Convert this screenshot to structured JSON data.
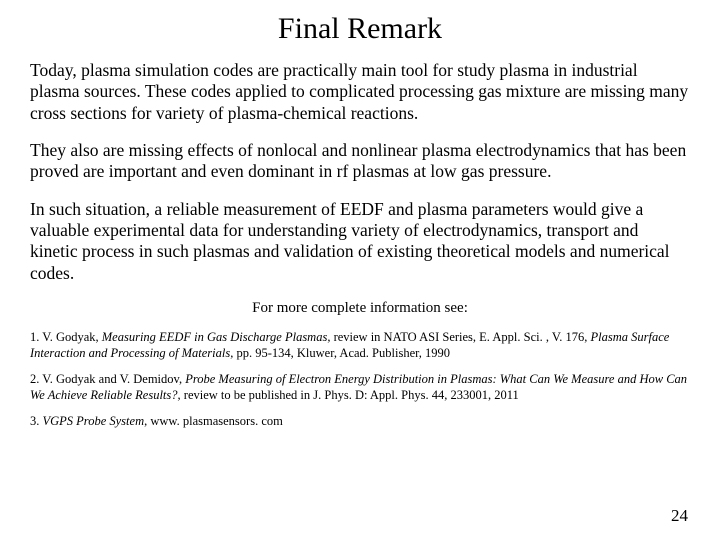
{
  "title": "Final Remark",
  "paragraphs": {
    "p1": "Today, plasma simulation codes are practically main tool for study plasma in industrial plasma sources. These codes applied to complicated processing gas mixture are missing many cross sections for variety of plasma-chemical reactions.",
    "p2": "They also are missing effects of nonlocal and nonlinear plasma electrodynamics that has been proved are important and even dominant in rf plasmas at low gas pressure.",
    "p3": "In such situation, a reliable measurement of EEDF and plasma parameters would give a valuable experimental data for understanding variety of electrodynamics, transport and kinetic process in such plasmas and validation of existing theoretical models and numerical codes."
  },
  "see_more": "For more complete information see:",
  "refs": {
    "r1_lead": "1. V. Godyak, ",
    "r1_ital": "Measuring EEDF in Gas Discharge Plasmas, ",
    "r1_tail_a": "review in NATO ASI Series, E. Appl. Sci. , V. 176, ",
    "r1_ital2": "Plasma Surface Interaction and Processing of Materials, ",
    "r1_tail_b": "pp. 95-134, Kluwer, Acad. Publisher, 1990",
    "r2_lead": "2. V. Godyak and V. Demidov, ",
    "r2_ital": "Probe Measuring of Electron Energy Distribution in Plasmas: What Can We Measure and How Can We Achieve Reliable Results?, ",
    "r2_tail": "review to be published in J. Phys. D: Appl. Phys. 44, 233001, 2011",
    "r3_lead": "3. ",
    "r3_ital": "VGPS Probe System",
    "r3_tail": ", www. plasmasensors. com"
  },
  "page_number": "24"
}
